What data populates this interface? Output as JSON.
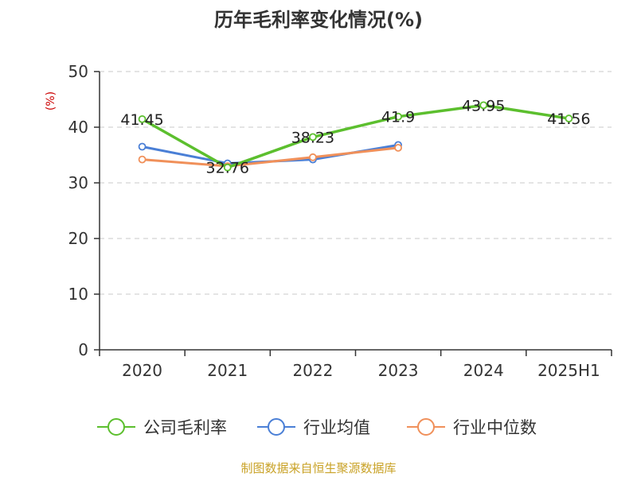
{
  "chart_data": {
    "type": "line",
    "title": "历年毛利率变化情况(%)",
    "ylabel": "(%)",
    "xlabel": "",
    "categories": [
      "2020",
      "2021",
      "2022",
      "2023",
      "2024",
      "2025H1"
    ],
    "ylim": [
      0,
      50
    ],
    "yticks": [
      0,
      10,
      20,
      30,
      40,
      50
    ],
    "grid": true,
    "legend_position": "bottom",
    "series": [
      {
        "name": "公司毛利率",
        "color": "#5cbf2e",
        "values": [
          41.45,
          32.76,
          38.23,
          41.9,
          43.95,
          41.56
        ],
        "labels": [
          "41.45",
          "32.76",
          "38.23",
          "41.9",
          "43.95",
          "41.56"
        ],
        "show_labels": true
      },
      {
        "name": "行业均值",
        "color": "#4a7fd6",
        "values": [
          36.5,
          33.5,
          34.2,
          36.8,
          null,
          null
        ],
        "show_labels": false
      },
      {
        "name": "行业中位数",
        "color": "#f0905a",
        "values": [
          34.2,
          33.0,
          34.6,
          36.3,
          null,
          null
        ],
        "show_labels": false
      }
    ],
    "source": "制图数据来自恒生聚源数据库"
  }
}
